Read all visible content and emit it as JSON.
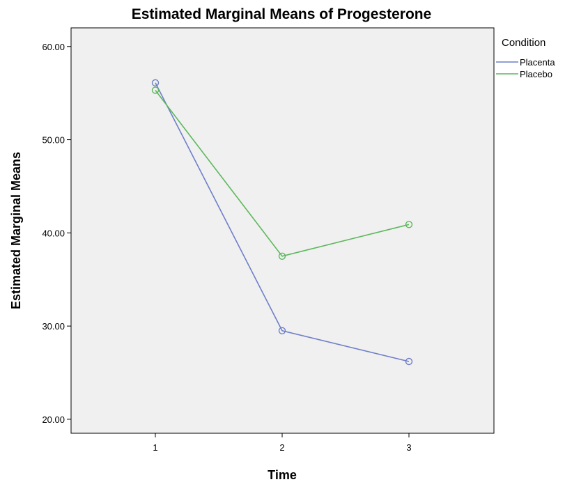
{
  "chart_data": {
    "type": "line",
    "title": "Estimated Marginal Means of Progesterone",
    "xlabel": "Time",
    "ylabel": "Estimated Marginal Means",
    "categories": [
      "1",
      "2",
      "3"
    ],
    "ylim": [
      18.5,
      62.0
    ],
    "yticks": [
      "20.00",
      "30.00",
      "40.00",
      "50.00",
      "60.00"
    ],
    "grid": false,
    "legend": {
      "title": "Condition",
      "position": "top-right"
    },
    "series": [
      {
        "name": "Placenta",
        "color": "#6e7fc9",
        "values": [
          56.1,
          29.5,
          26.2
        ],
        "marker": "open-circle"
      },
      {
        "name": "Placebo",
        "color": "#5cb85c",
        "values": [
          55.3,
          37.5,
          40.9
        ],
        "marker": "open-circle"
      }
    ],
    "plot_background": "#f0f0f0"
  }
}
